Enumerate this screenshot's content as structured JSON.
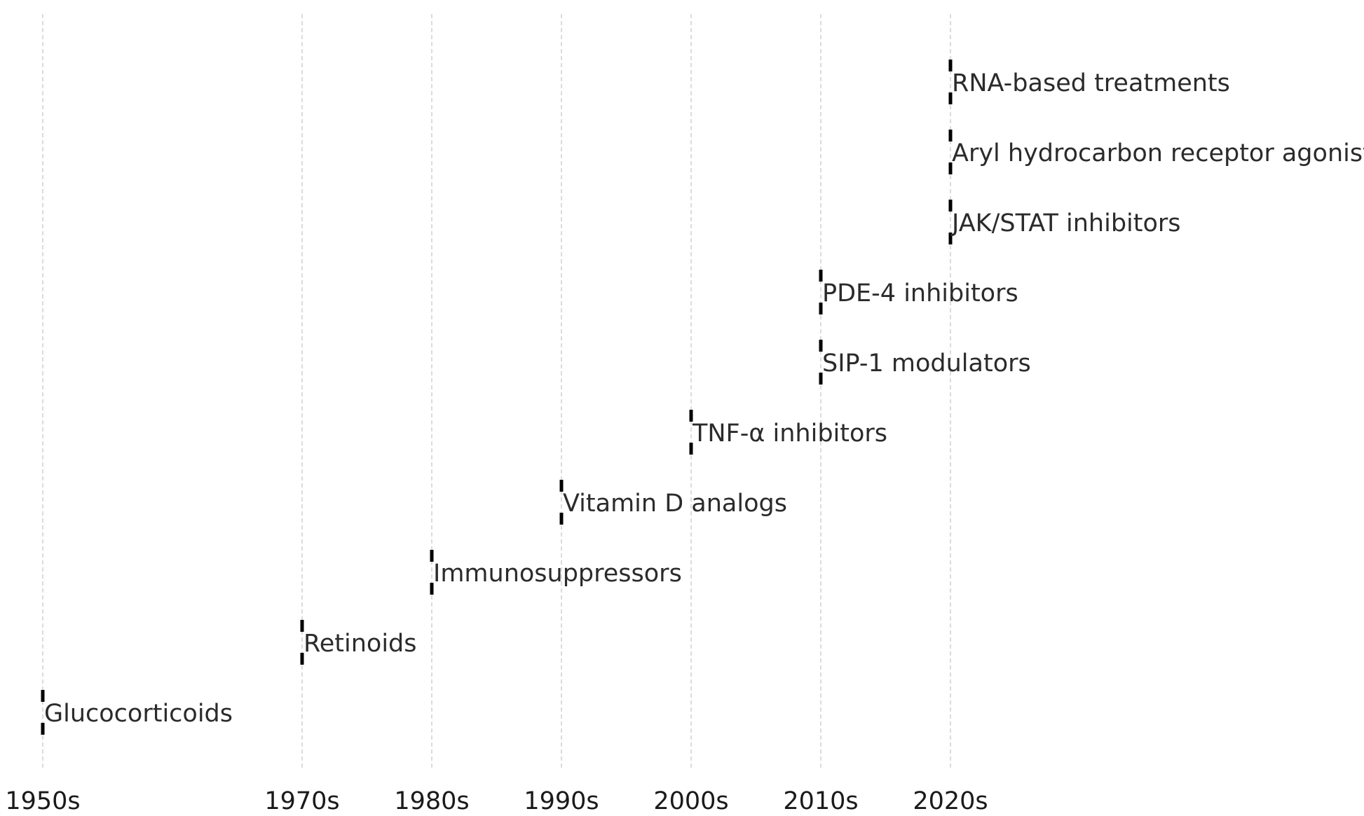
{
  "chart_data": {
    "type": "timeline",
    "title": "",
    "xlabel": "",
    "ylabel": "",
    "x_ticks": [
      "1950s",
      "1970s",
      "1980s",
      "1990s",
      "2000s",
      "2010s",
      "2020s"
    ],
    "x_ticks_numeric": [
      1950,
      1970,
      1980,
      1990,
      2000,
      2010,
      2020
    ],
    "xlim": [
      1950,
      2020
    ],
    "grid": "vertical dashed",
    "events": [
      {
        "x": 1950,
        "label": "Glucocorticoids"
      },
      {
        "x": 1970,
        "label": "Retinoids"
      },
      {
        "x": 1980,
        "label": "Immunosuppressors"
      },
      {
        "x": 1990,
        "label": "Vitamin D analogs"
      },
      {
        "x": 2000,
        "label": "TNF-α inhibitors"
      },
      {
        "x": 2010,
        "label": "SIP-1 modulators"
      },
      {
        "x": 2010,
        "label": "PDE-4 inhibitors"
      },
      {
        "x": 2020,
        "label": "JAK/STAT inhibitors"
      },
      {
        "x": 2020,
        "label": "Aryl hydrocarbon receptor agonists"
      },
      {
        "x": 2020,
        "label": "RNA-based treatments"
      }
    ],
    "colors": {
      "marker": "#000000",
      "label": "#2b2b2b",
      "grid": "#c8c8c8"
    }
  }
}
